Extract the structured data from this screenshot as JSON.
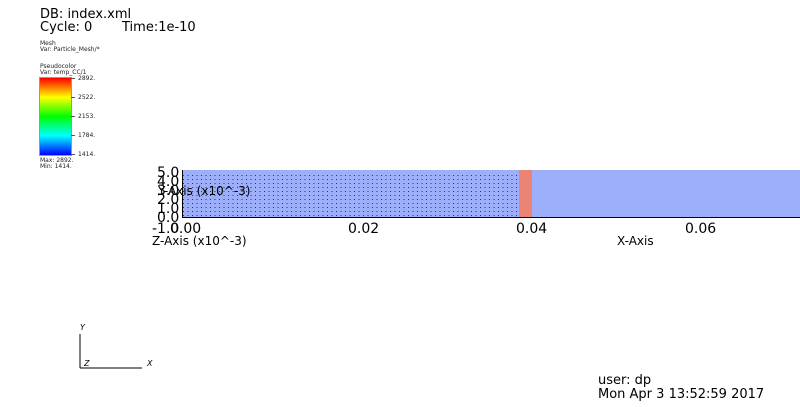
{
  "header": {
    "db": "DB: index.xml",
    "cycle": "Cycle: 0",
    "time": "Time:1e-10"
  },
  "legend_mesh": {
    "title": "Mesh",
    "var": "Var: Particle_Mesh/*"
  },
  "legend_pseudocolor": {
    "title": "Pseudocolor",
    "var": "Var: temp_CC/1",
    "ticks": [
      "2892.",
      "2522.",
      "2153.",
      "1784.",
      "1414."
    ],
    "max": "Max:  2892.",
    "min": "Min:  1414."
  },
  "plot": {
    "x_ticks": [
      "0.00",
      "0.02",
      "0.04",
      "0.06"
    ],
    "x_label": "X-Axis",
    "y_ticks": [
      "5.0",
      "4.0",
      "3.0",
      "2.0",
      "1.0",
      "0.0"
    ],
    "y_label": "Y-Axis (x10^-3)",
    "z_tick": "-1.0",
    "z_label": "Z-Axis (x10^-3)",
    "colors": {
      "domain": "#9daefa",
      "particle_dots": "#2a2d8a",
      "hot_band": "#f47f66"
    }
  },
  "triad": {
    "x": "X",
    "y": "Y",
    "z": "Z"
  },
  "footer": {
    "user": "user: dp",
    "date": "Mon Apr  3 13:52:59 2017"
  }
}
